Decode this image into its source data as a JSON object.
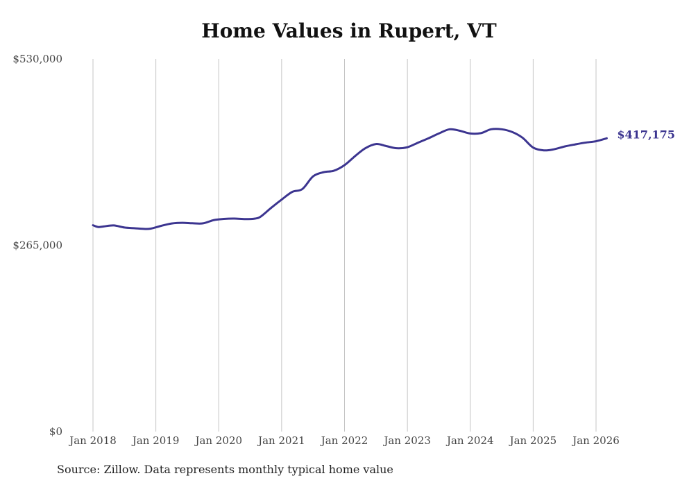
{
  "chart_data": {
    "type": "line",
    "title": "Home Values in Rupert, VT",
    "xlabel": "",
    "ylabel": "",
    "ylim": [
      0,
      530000
    ],
    "y_ticks": [
      {
        "value": 0,
        "label": "$0"
      },
      {
        "value": 265000,
        "label": "$265,000"
      },
      {
        "value": 530000,
        "label": "$530,000"
      }
    ],
    "x_ticks": [
      {
        "value": 2018.0,
        "label": "Jan 2018"
      },
      {
        "value": 2019.0,
        "label": "Jan 2019"
      },
      {
        "value": 2020.0,
        "label": "Jan 2020"
      },
      {
        "value": 2021.0,
        "label": "Jan 2021"
      },
      {
        "value": 2022.0,
        "label": "Jan 2022"
      },
      {
        "value": 2023.0,
        "label": "Jan 2023"
      },
      {
        "value": 2024.0,
        "label": "Jan 2024"
      },
      {
        "value": 2025.0,
        "label": "Jan 2025"
      },
      {
        "value": 2026.0,
        "label": "Jan 2026"
      }
    ],
    "grid": "vertical",
    "series": [
      {
        "name": "Typical home value",
        "color": "#3c3590",
        "end_label": "$417,175",
        "points": [
          [
            2018.0,
            293500
          ],
          [
            2018.08,
            291000
          ],
          [
            2018.17,
            291800
          ],
          [
            2018.33,
            293200
          ],
          [
            2018.5,
            290300
          ],
          [
            2018.67,
            289200
          ],
          [
            2018.83,
            288200
          ],
          [
            2018.92,
            288700
          ],
          [
            2019.08,
            292500
          ],
          [
            2019.25,
            296000
          ],
          [
            2019.42,
            297000
          ],
          [
            2019.58,
            296300
          ],
          [
            2019.75,
            296200
          ],
          [
            2019.92,
            300800
          ],
          [
            2020.08,
            302500
          ],
          [
            2020.25,
            303000
          ],
          [
            2020.42,
            302200
          ],
          [
            2020.58,
            303000
          ],
          [
            2020.67,
            306000
          ],
          [
            2020.83,
            318000
          ],
          [
            2021.0,
            330000
          ],
          [
            2021.17,
            341000
          ],
          [
            2021.33,
            345000
          ],
          [
            2021.5,
            363000
          ],
          [
            2021.67,
            369000
          ],
          [
            2021.83,
            371000
          ],
          [
            2022.0,
            379000
          ],
          [
            2022.17,
            392000
          ],
          [
            2022.33,
            403000
          ],
          [
            2022.5,
            409000
          ],
          [
            2022.67,
            406000
          ],
          [
            2022.83,
            403000
          ],
          [
            2023.0,
            404500
          ],
          [
            2023.17,
            411000
          ],
          [
            2023.33,
            417000
          ],
          [
            2023.5,
            424000
          ],
          [
            2023.67,
            430000
          ],
          [
            2023.83,
            428000
          ],
          [
            2024.0,
            424000
          ],
          [
            2024.17,
            424500
          ],
          [
            2024.33,
            430000
          ],
          [
            2024.5,
            430000
          ],
          [
            2024.67,
            426000
          ],
          [
            2024.83,
            418000
          ],
          [
            2025.0,
            404000
          ],
          [
            2025.17,
            400000
          ],
          [
            2025.33,
            401500
          ],
          [
            2025.5,
            405500
          ],
          [
            2025.67,
            408500
          ],
          [
            2025.83,
            411000
          ],
          [
            2026.0,
            413000
          ],
          [
            2026.17,
            417175
          ]
        ]
      }
    ]
  },
  "footer": {
    "source": "Source: Zillow. Data represents monthly typical home value"
  }
}
